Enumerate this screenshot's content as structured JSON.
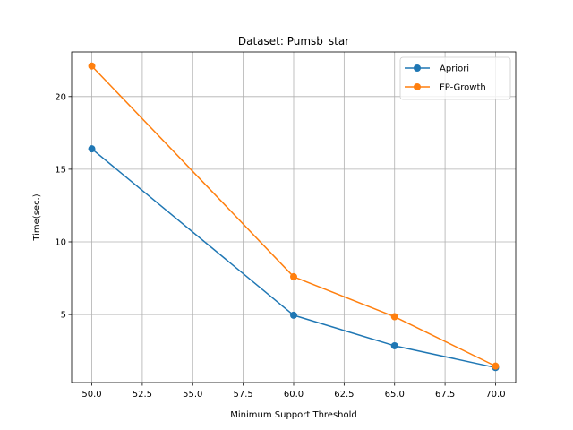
{
  "chart_data": {
    "type": "line",
    "title": "Dataset: Pumsb_star",
    "xlabel": "Minimum Support Threshold",
    "ylabel": "Time(sec.)",
    "x": [
      50,
      60,
      65,
      70
    ],
    "xlim": [
      49.0,
      71.0
    ],
    "ylim": [
      0.32,
      23.07
    ],
    "xticks": [
      50.0,
      52.5,
      55.0,
      57.5,
      60.0,
      62.5,
      65.0,
      67.5,
      70.0
    ],
    "xtick_labels": [
      "50.0",
      "52.5",
      "55.0",
      "57.5",
      "60.0",
      "62.5",
      "65.0",
      "67.5",
      "70.0"
    ],
    "yticks": [
      5,
      10,
      15,
      20
    ],
    "ytick_labels": [
      "5",
      "10",
      "15",
      "20"
    ],
    "grid": true,
    "legend_position": "top-right",
    "series": [
      {
        "name": "Apriori",
        "color": "#1f77b4",
        "marker": "circle",
        "values": [
          16.4,
          4.95,
          2.85,
          1.35
        ]
      },
      {
        "name": "FP-Growth",
        "color": "#ff7f0e",
        "marker": "circle",
        "values": [
          22.1,
          7.6,
          4.85,
          1.45
        ]
      }
    ]
  }
}
